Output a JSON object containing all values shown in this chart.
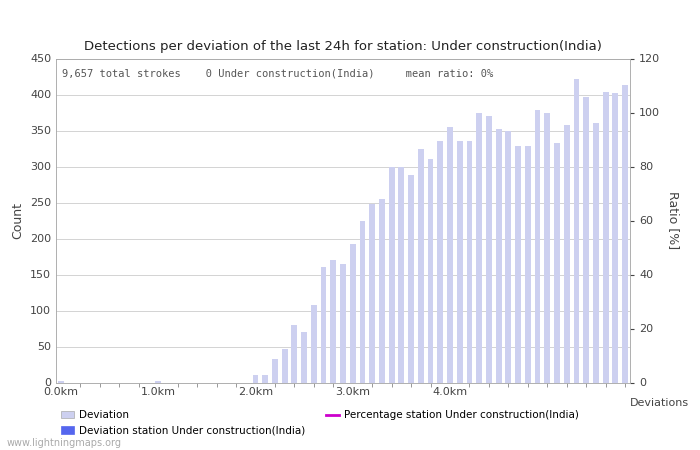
{
  "title": "Detections per deviation of the last 24h for station: Under construction(India)",
  "subtitle": "9,657 total strokes    0 Under construction(India)     mean ratio: 0%",
  "ylabel_left": "Count",
  "ylabel_right": "Ratio [%]",
  "xlabel": "Deviations",
  "bar_color": "#cdd0f0",
  "station_bar_color": "#5566ee",
  "line_color": "#cc00cc",
  "ylim_left": [
    0,
    450
  ],
  "ylim_right": [
    0,
    120
  ],
  "yticks_left": [
    0,
    50,
    100,
    150,
    200,
    250,
    300,
    350,
    400,
    450
  ],
  "yticks_right": [
    0,
    20,
    40,
    60,
    80,
    100,
    120
  ],
  "bar_values": [
    2,
    0,
    0,
    0,
    0,
    0,
    0,
    0,
    0,
    0,
    2,
    0,
    0,
    0,
    0,
    0,
    0,
    0,
    0,
    0,
    10,
    10,
    33,
    46,
    80,
    70,
    108,
    160,
    170,
    165,
    193,
    225,
    248,
    255,
    300,
    300,
    288,
    325,
    310,
    335,
    355,
    335,
    335,
    375,
    370,
    352,
    350,
    328,
    328,
    378,
    375,
    332,
    358,
    422,
    397,
    360,
    404,
    402,
    413
  ],
  "n_bars": 59,
  "km_per_bar": 0.1,
  "x_tick_km": [
    0,
    1,
    2,
    3,
    4
  ],
  "x_tick_labels": [
    "0.0km",
    "1.0km",
    "2.0km",
    "3.0km",
    "4.0km"
  ],
  "watermark": "www.lightningmaps.org",
  "legend_deviation_label": "Deviation",
  "legend_station_label": "Deviation station Under construction(India)",
  "legend_pct_label": "Percentage station Under construction(India)"
}
